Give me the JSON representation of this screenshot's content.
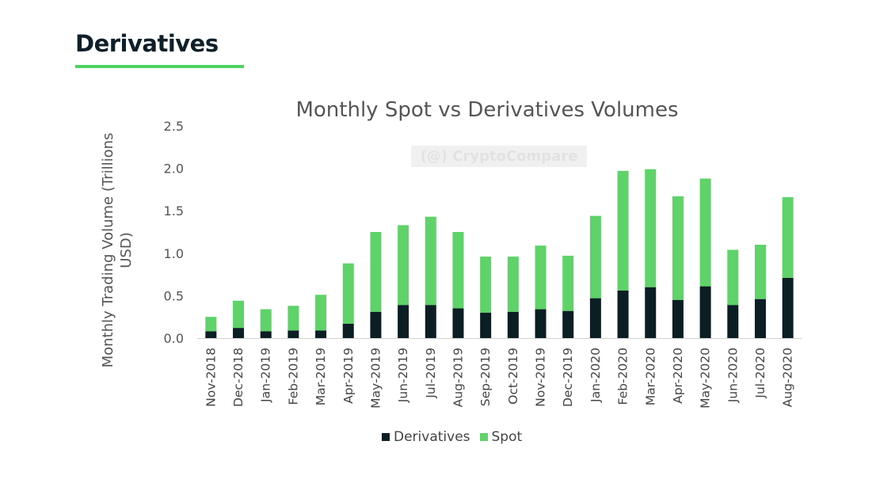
{
  "header": {
    "section_title": "Derivatives"
  },
  "watermark": "(@) CryptoCompare",
  "colors": {
    "derivatives": "#0b1e24",
    "spot": "#5fd369",
    "accent": "#4cd263"
  },
  "chart_data": {
    "type": "bar",
    "stacked": true,
    "title": "Monthly Spot vs Derivatives Volumes",
    "xlabel": "",
    "ylabel": "Monthly Trading Volume (Trillions USD)",
    "ylim": [
      0,
      2.5
    ],
    "yticks": [
      "0.0",
      "0.5",
      "1.0",
      "1.5",
      "2.0",
      "2.5"
    ],
    "grid": false,
    "legend_position": "bottom",
    "categories": [
      "Nov-2018",
      "Dec-2018",
      "Jan-2019",
      "Feb-2019",
      "Mar-2019",
      "Apr-2019",
      "May-2019",
      "Jun-2019",
      "Jul-2019",
      "Aug-2019",
      "Sep-2019",
      "Oct-2019",
      "Nov-2019",
      "Dec-2019",
      "Jan-2020",
      "Feb-2020",
      "Mar-2020",
      "Apr-2020",
      "May-2020",
      "Jun-2020",
      "Jul-2020",
      "Aug-2020"
    ],
    "series": [
      {
        "name": "Derivatives",
        "values": [
          0.08,
          0.12,
          0.08,
          0.09,
          0.09,
          0.17,
          0.31,
          0.39,
          0.39,
          0.35,
          0.3,
          0.31,
          0.34,
          0.32,
          0.47,
          0.56,
          0.6,
          0.45,
          0.61,
          0.39,
          0.46,
          0.71
        ]
      },
      {
        "name": "Spot",
        "values": [
          0.17,
          0.32,
          0.26,
          0.29,
          0.42,
          0.71,
          0.94,
          0.94,
          1.04,
          0.9,
          0.66,
          0.65,
          0.75,
          0.65,
          0.97,
          1.41,
          1.39,
          1.22,
          1.27,
          0.65,
          0.64,
          0.95
        ]
      }
    ]
  }
}
